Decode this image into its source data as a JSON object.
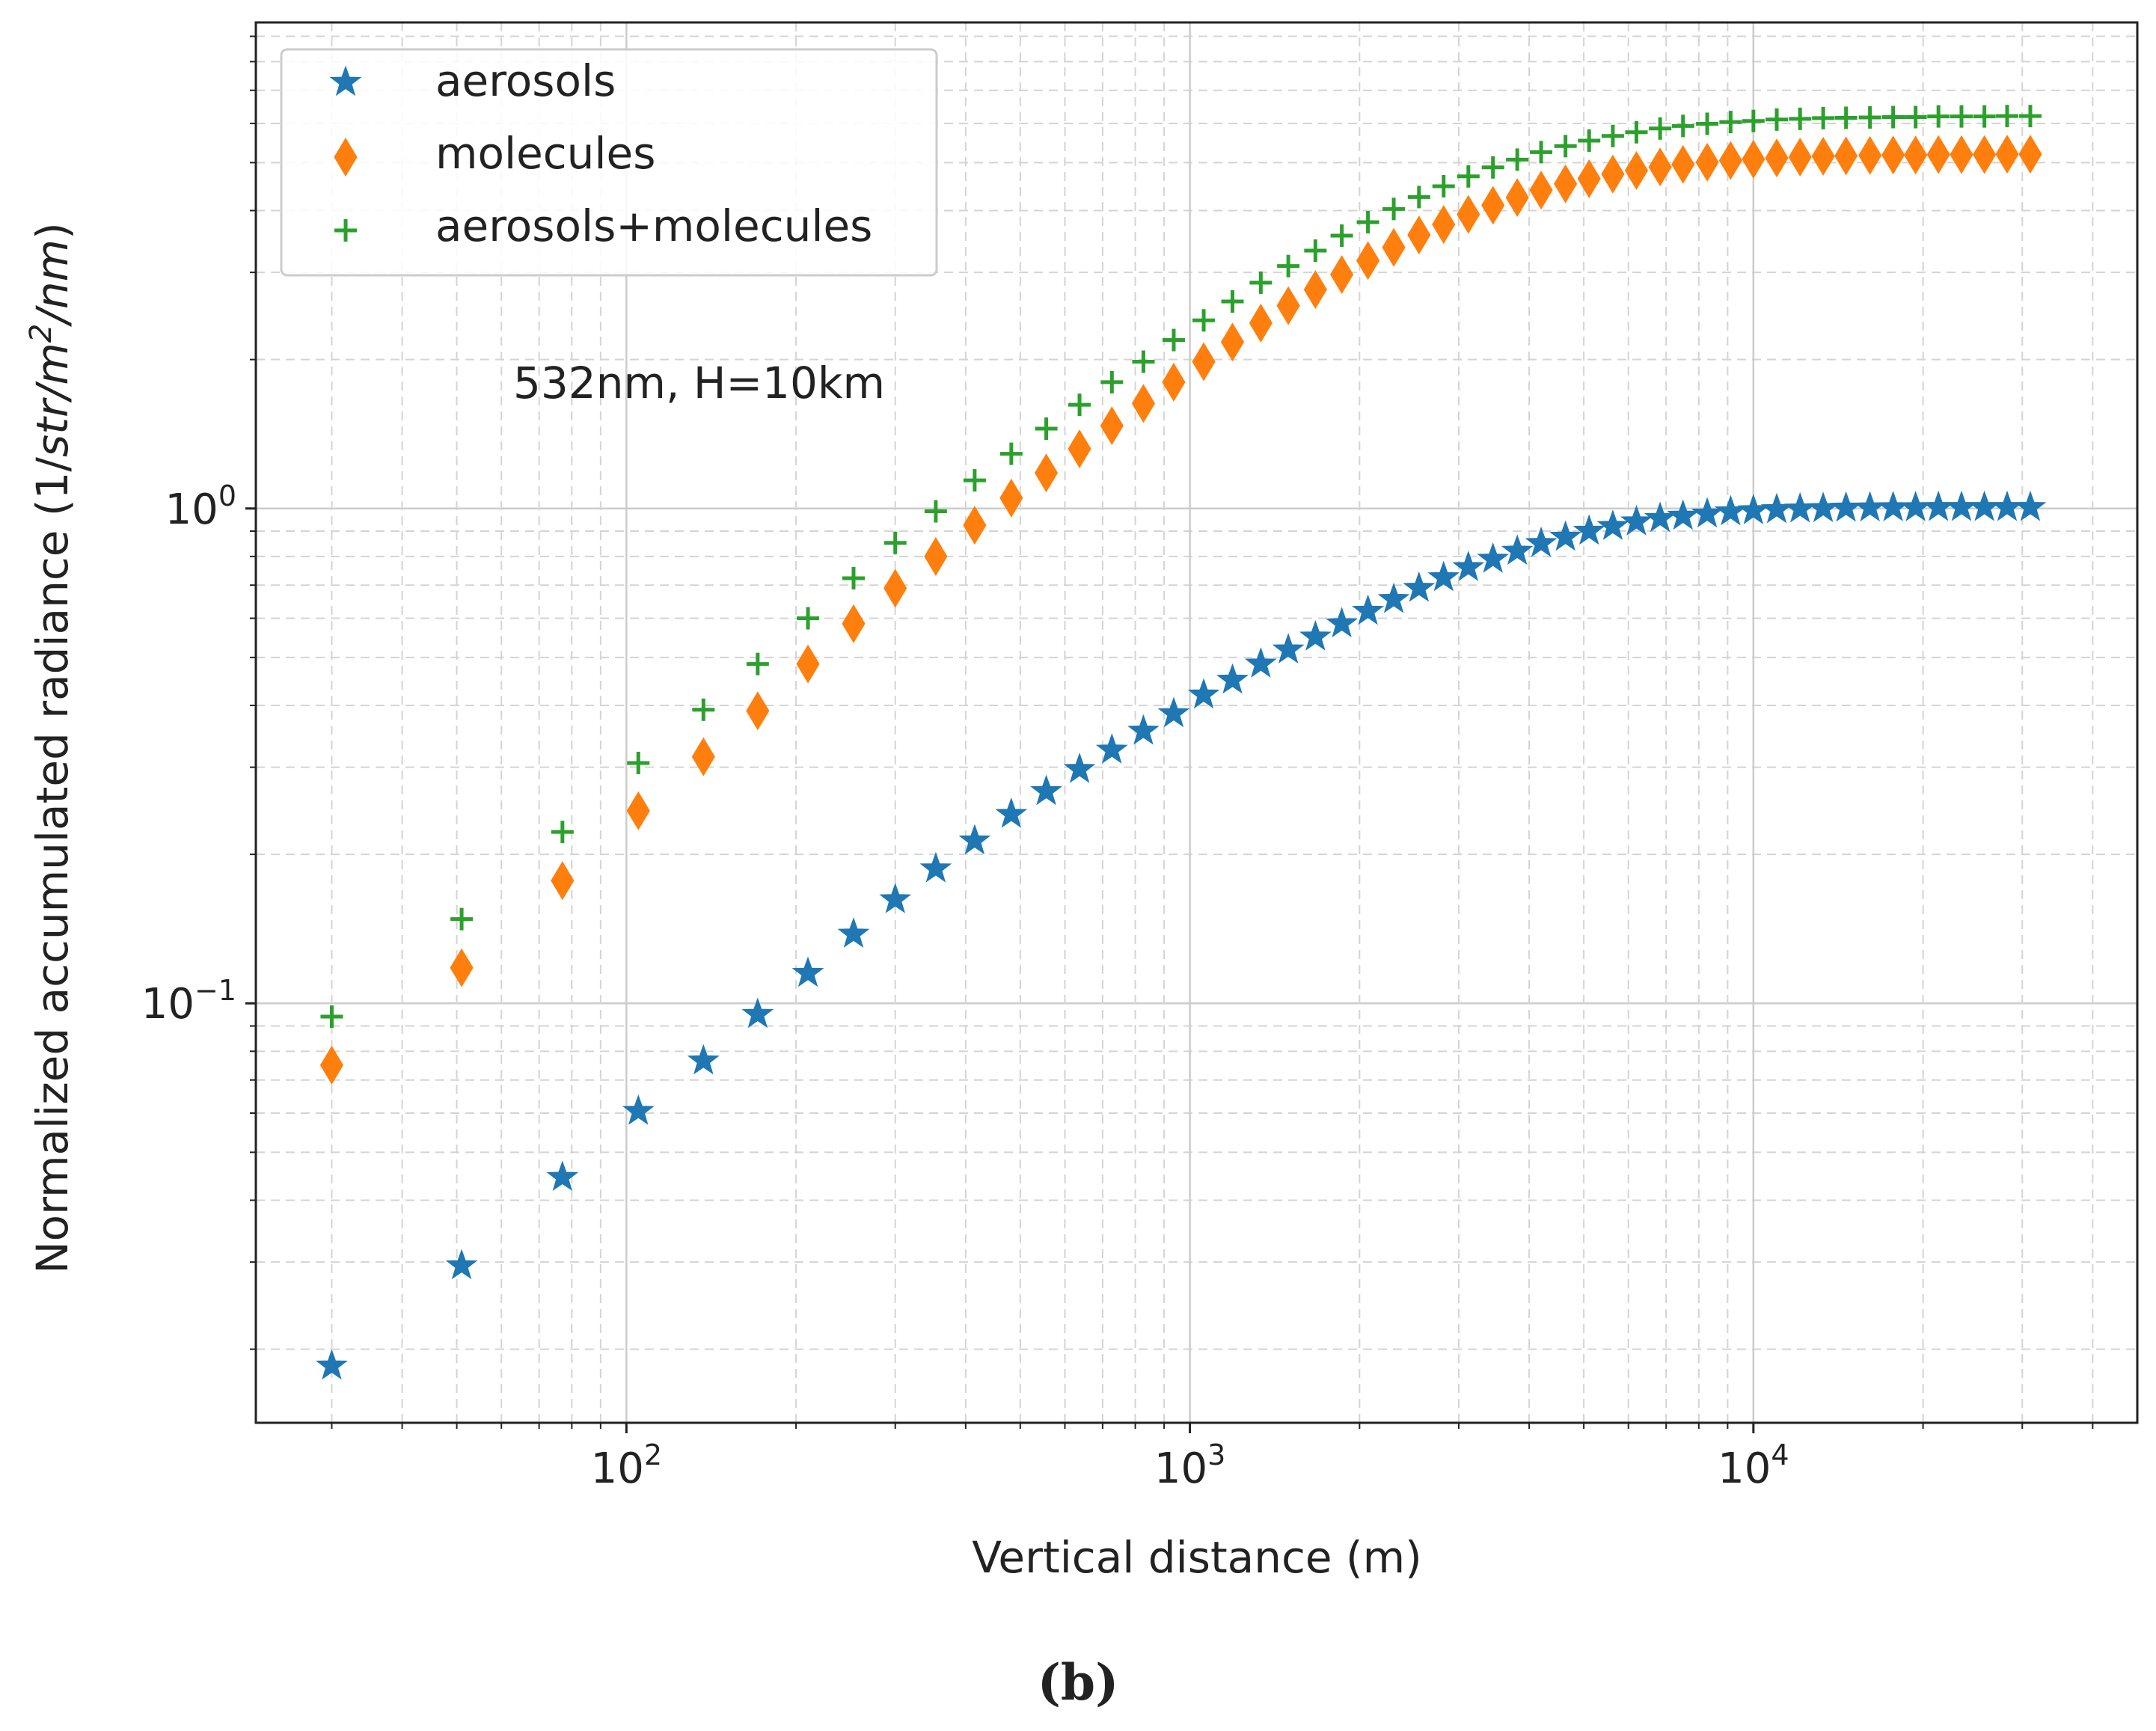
{
  "chart_data": {
    "type": "scatter",
    "xscale": "log",
    "yscale": "log",
    "xlim": [
      22,
      48000
    ],
    "ylim": [
      0.0142,
      9.6
    ],
    "grid": true,
    "legend_position": "top-left",
    "xlabel": "Vertical distance (m)",
    "ylabel_prefix": "Normalized accumulated radiance (1/",
    "ylabel_italic": "str",
    "ylabel_slash": "/",
    "ylabel_m": "m",
    "ylabel_sup": "2",
    "ylabel_nm": "/nm",
    "ylabel_suffix": ")",
    "annotation": "532nm, H=10km",
    "caption": "(b)",
    "x_ticks": [
      {
        "value": 100,
        "base": "10",
        "exp": "2"
      },
      {
        "value": 1000,
        "base": "10",
        "exp": "3"
      },
      {
        "value": 10000,
        "base": "10",
        "exp": "4"
      }
    ],
    "y_ticks": [
      {
        "value": 0.1,
        "base": "10",
        "exp": "−1"
      },
      {
        "value": 1,
        "base": "10",
        "exp": "0"
      }
    ],
    "x": [
      30,
      51,
      77,
      105,
      137,
      171,
      210,
      253,
      300,
      354,
      415,
      482,
      556,
      637,
      727,
      827,
      936,
      1058,
      1190,
      1336,
      1495,
      1670,
      1860,
      2070,
      2300,
      2550,
      2820,
      3120,
      3450,
      3810,
      4200,
      4640,
      5110,
      5630,
      6200,
      6830,
      7500,
      8280,
      9110,
      10000,
      11000,
      12100,
      13300,
      14600,
      16100,
      17700,
      19400,
      21300,
      23400,
      25700,
      28200,
      31000
    ],
    "series": [
      {
        "name": "aerosols",
        "marker": "star",
        "color": "#1f77b4",
        "values": [
          0.0185,
          0.0295,
          0.0445,
          0.0605,
          0.0765,
          0.095,
          0.115,
          0.138,
          0.162,
          0.187,
          0.213,
          0.241,
          0.268,
          0.297,
          0.325,
          0.355,
          0.385,
          0.42,
          0.45,
          0.485,
          0.518,
          0.55,
          0.585,
          0.62,
          0.655,
          0.69,
          0.725,
          0.76,
          0.79,
          0.82,
          0.85,
          0.875,
          0.9,
          0.92,
          0.94,
          0.955,
          0.965,
          0.975,
          0.985,
          0.99,
          0.995,
          0.998,
          1.0,
          1.002,
          1.003,
          1.004,
          1.004,
          1.005,
          1.005,
          1.005,
          1.005,
          1.005
        ]
      },
      {
        "name": "molecules",
        "marker": "thin_diamond",
        "color": "#ff7f0e",
        "values": [
          0.075,
          0.118,
          0.177,
          0.245,
          0.315,
          0.39,
          0.485,
          0.585,
          0.69,
          0.8,
          0.925,
          1.05,
          1.18,
          1.32,
          1.47,
          1.63,
          1.8,
          1.98,
          2.17,
          2.37,
          2.57,
          2.77,
          2.97,
          3.17,
          3.37,
          3.57,
          3.75,
          3.93,
          4.1,
          4.25,
          4.4,
          4.53,
          4.64,
          4.74,
          4.82,
          4.9,
          4.96,
          5.01,
          5.05,
          5.08,
          5.11,
          5.13,
          5.15,
          5.16,
          5.17,
          5.18,
          5.18,
          5.19,
          5.19,
          5.19,
          5.2,
          5.2
        ]
      },
      {
        "name": "aerosols+molecules",
        "marker": "plus",
        "color": "#2ca02c",
        "values": [
          0.094,
          0.148,
          0.222,
          0.306,
          0.392,
          0.485,
          0.6,
          0.723,
          0.852,
          0.987,
          1.14,
          1.29,
          1.45,
          1.62,
          1.8,
          1.98,
          2.19,
          2.4,
          2.62,
          2.86,
          3.09,
          3.32,
          3.56,
          3.79,
          4.03,
          4.26,
          4.48,
          4.69,
          4.89,
          5.07,
          5.25,
          5.4,
          5.54,
          5.66,
          5.76,
          5.86,
          5.93,
          5.99,
          6.04,
          6.07,
          6.11,
          6.13,
          6.15,
          6.16,
          6.17,
          6.18,
          6.18,
          6.2,
          6.2,
          6.2,
          6.21,
          6.21
        ]
      }
    ]
  },
  "colors": {
    "frame": "#222222",
    "grid_major": "#cccccc",
    "grid_minor": "#d4d4d4",
    "legend_border": "#cccccc"
  }
}
